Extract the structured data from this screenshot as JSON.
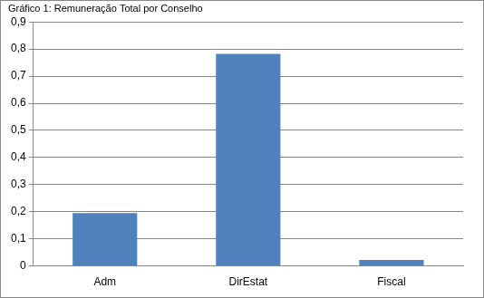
{
  "chart_data": {
    "type": "bar",
    "title": "Gráfico 1: Remuneração Total por Conselho",
    "categories": [
      "Adm",
      "DirEstat",
      "Fiscal"
    ],
    "values": [
      0.195,
      0.782,
      0.022
    ],
    "color": "#4f81bd",
    "ylim": [
      0,
      0.9
    ],
    "yticks": [
      0,
      {
        "value": 0.1,
        "label": "0,1"
      },
      {
        "value": 0.2,
        "label": "0,2"
      },
      {
        "value": 0.3,
        "label": "0,3"
      },
      {
        "value": 0.4,
        "label": "0,4"
      },
      {
        "value": 0.5,
        "label": "0,5"
      },
      {
        "value": 0.6,
        "label": "0,6"
      },
      {
        "value": 0.7,
        "label": "0,7"
      },
      {
        "value": 0.8,
        "label": "0,8"
      },
      {
        "value": 0.9,
        "label": "0,9"
      }
    ],
    "grid": true
  }
}
